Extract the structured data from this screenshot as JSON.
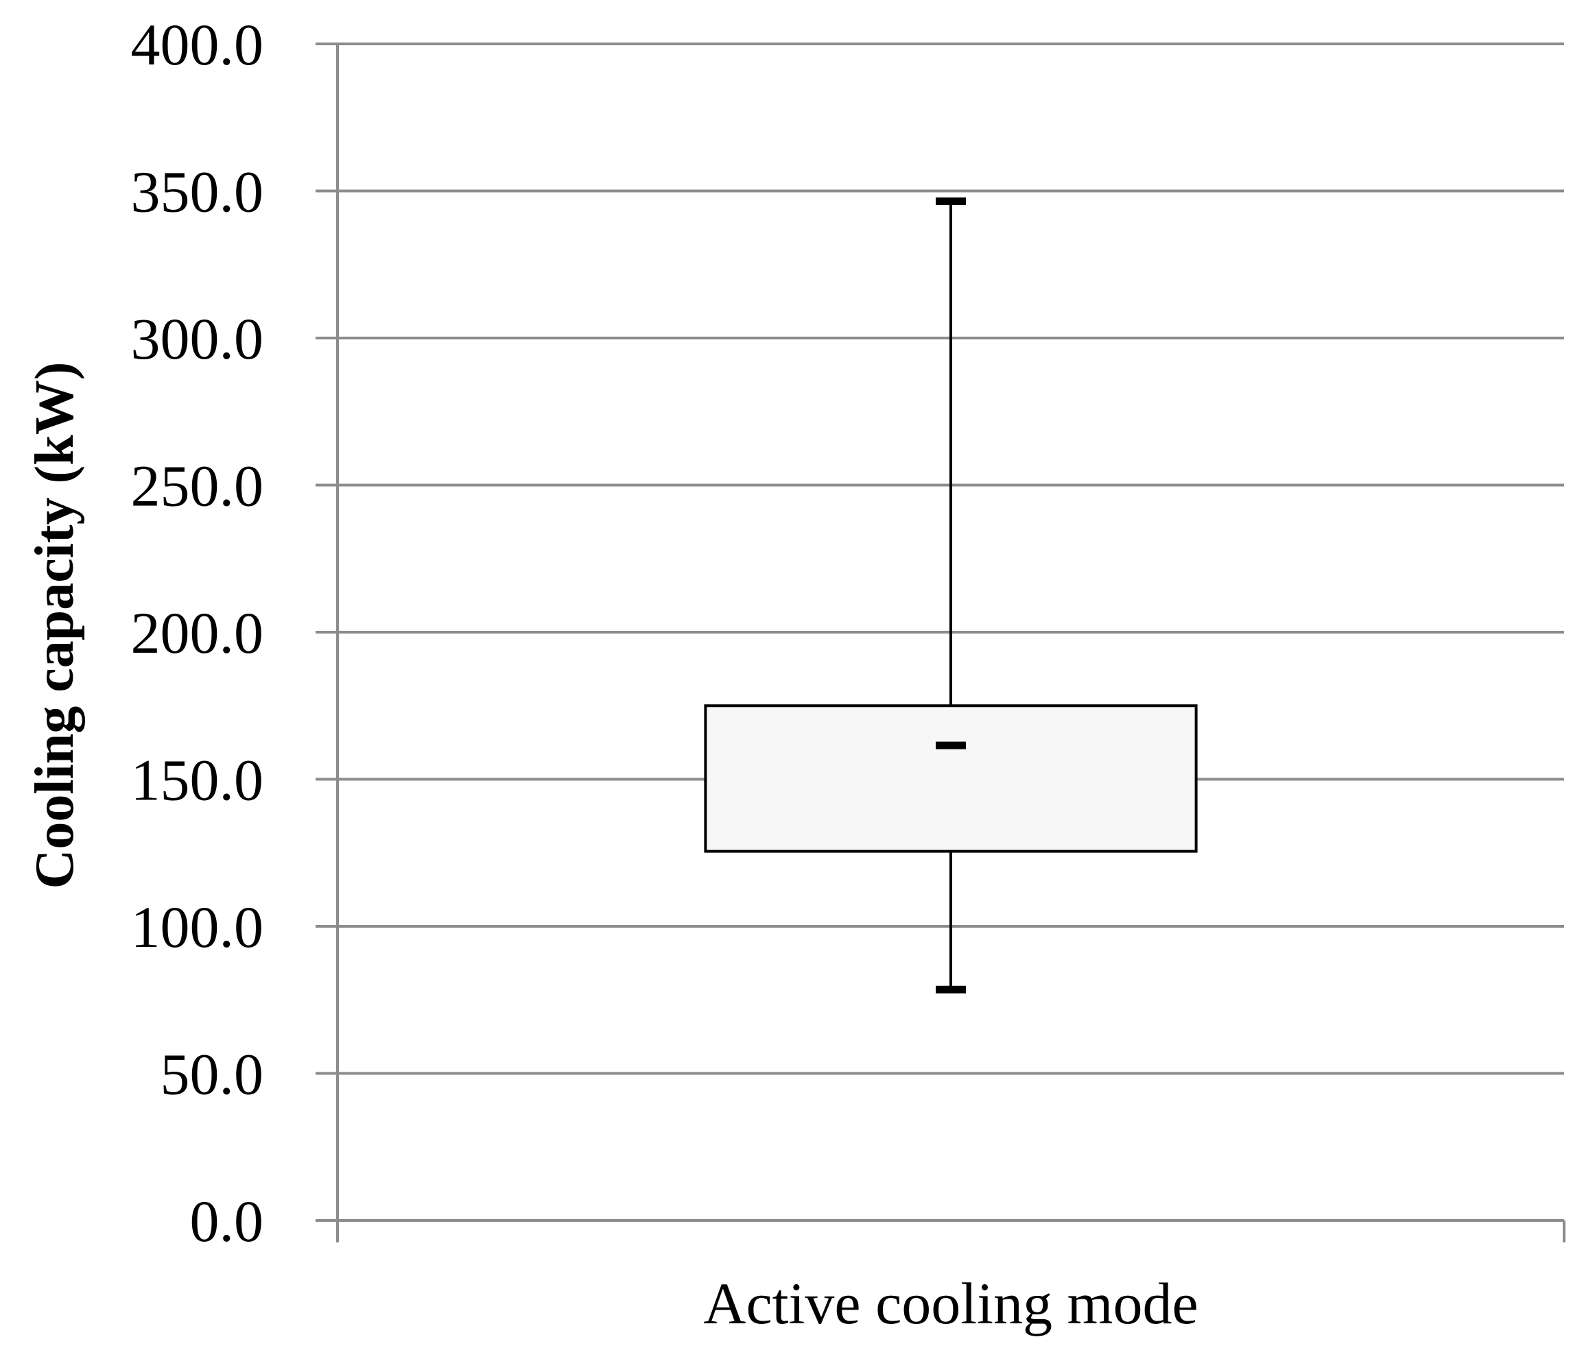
{
  "chart_data": {
    "type": "box",
    "title": "",
    "xlabel": "",
    "ylabel": "Cooling capacity (kW)",
    "ylim": [
      0,
      400
    ],
    "ytick_step": 50,
    "ytick_labels": [
      "0.0",
      "50.0",
      "100.0",
      "150.0",
      "200.0",
      "250.0",
      "300.0",
      "350.0",
      "400.0"
    ],
    "grid": true,
    "legend": "none",
    "categories": [
      "Active cooling mode"
    ],
    "boxes": [
      {
        "category": "Active cooling mode",
        "min": 78.5,
        "q1": 125.5,
        "median": 161.5,
        "q3": 175.0,
        "max": 346.5
      }
    ],
    "colors": {
      "grid": "#8c8c8c",
      "box_fill": "#f7f7f7",
      "box_stroke": "#000000",
      "whisker": "#000000"
    }
  }
}
